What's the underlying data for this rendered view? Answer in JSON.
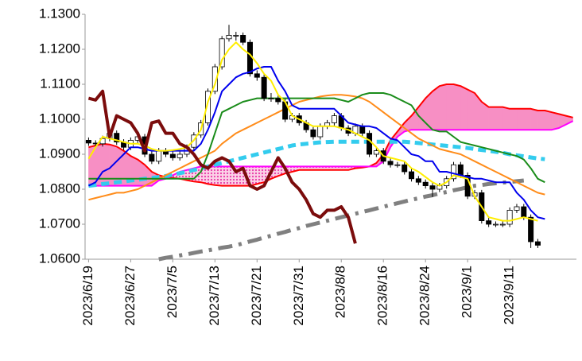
{
  "chart_data": {
    "type": "candlestick",
    "categories": [
      "2023/6/19",
      null,
      null,
      null,
      null,
      null,
      "2023/6/27",
      null,
      null,
      null,
      null,
      null,
      "2023/7/5",
      null,
      null,
      null,
      null,
      null,
      "2023/7/13",
      null,
      null,
      null,
      null,
      null,
      "2023/7/21",
      null,
      null,
      null,
      null,
      null,
      "2023/7/31",
      null,
      null,
      null,
      null,
      null,
      "2023/8/8",
      null,
      null,
      null,
      null,
      null,
      "2023/8/16",
      null,
      null,
      null,
      null,
      null,
      "2023/8/24",
      null,
      null,
      null,
      null,
      null,
      "2023/9/1",
      null,
      null,
      null,
      null,
      null,
      "2023/9/11",
      null,
      null,
      null,
      null,
      null,
      null,
      null,
      null,
      null
    ],
    "open": [
      1.094,
      1.0932,
      1.093,
      1.0945,
      1.096,
      1.0935,
      1.092,
      1.094,
      1.095,
      1.09,
      1.088,
      1.091,
      1.09,
      1.089,
      1.09,
      1.092,
      1.0955,
      1.099,
      1.108,
      1.115,
      1.123,
      1.124,
      1.124,
      1.122,
      1.113,
      1.112,
      1.106,
      1.106,
      1.105,
      1.1,
      1.101,
      1.099,
      1.097,
      1.095,
      1.098,
      1.099,
      1.101,
      1.0975,
      1.096,
      1.098,
      1.096,
      1.09,
      1.091,
      1.088,
      1.087,
      1.087,
      1.085,
      1.083,
      1.082,
      1.081,
      1.08,
      1.081,
      1.083,
      1.087,
      1.084,
      1.078,
      1.079,
      1.071,
      1.07,
      1.07,
      1.07,
      1.074,
      1.075,
      1.072,
      1.065,
      null,
      null,
      null,
      null,
      null
    ],
    "high": [
      1.0948,
      1.094,
      1.0953,
      1.0968,
      1.0968,
      1.0943,
      1.0948,
      1.0958,
      1.0958,
      1.0908,
      1.0918,
      1.0918,
      1.0908,
      1.0908,
      1.0928,
      1.0963,
      1.0998,
      1.1088,
      1.1158,
      1.1238,
      1.127,
      1.125,
      1.1248,
      1.1228,
      1.114,
      1.1128,
      1.1075,
      1.1068,
      1.1058,
      1.1018,
      1.1018,
      1.0998,
      1.0978,
      1.0988,
      1.0998,
      1.1018,
      1.1018,
      1.0983,
      1.0988,
      1.0988,
      1.0968,
      1.0918,
      1.0918,
      1.0888,
      1.0878,
      1.0878,
      1.0858,
      1.0838,
      1.0828,
      1.0818,
      1.0818,
      1.0838,
      1.0878,
      1.0878,
      1.0848,
      1.0798,
      1.0798,
      1.0718,
      1.0708,
      1.0708,
      1.0748,
      1.0758,
      1.0758,
      1.0728,
      1.0658,
      null,
      null,
      null,
      null,
      null
    ],
    "low": [
      1.0924,
      1.0922,
      1.0922,
      1.0937,
      1.0927,
      1.0912,
      1.0912,
      1.0932,
      1.0892,
      1.0872,
      1.0872,
      1.0892,
      1.0882,
      1.0882,
      1.0892,
      1.0912,
      1.0947,
      1.0982,
      1.1072,
      1.1142,
      1.1222,
      1.1225,
      1.1212,
      1.1122,
      1.111,
      1.1052,
      1.105,
      1.1042,
      1.0992,
      1.0992,
      1.0982,
      1.0962,
      1.0942,
      1.0942,
      1.0972,
      1.0982,
      1.0967,
      1.0952,
      1.0952,
      1.0952,
      1.0892,
      1.0892,
      1.0872,
      1.0862,
      1.0862,
      1.0842,
      1.0822,
      1.0812,
      1.0802,
      1.0778,
      1.0792,
      1.0802,
      1.0822,
      1.0832,
      1.0772,
      1.0772,
      1.0702,
      1.0692,
      1.0692,
      1.0692,
      1.0692,
      1.0732,
      1.0712,
      1.0632,
      1.0632,
      null,
      null,
      null,
      null,
      null
    ],
    "close": [
      1.0932,
      1.093,
      1.0945,
      1.096,
      1.0935,
      1.092,
      1.094,
      1.095,
      1.09,
      1.088,
      1.091,
      1.09,
      1.089,
      1.09,
      1.092,
      1.0955,
      1.099,
      1.108,
      1.115,
      1.123,
      1.124,
      1.124,
      1.122,
      1.113,
      1.112,
      1.106,
      1.106,
      1.105,
      1.1,
      1.101,
      1.099,
      1.097,
      1.095,
      1.098,
      1.099,
      1.101,
      1.0975,
      1.096,
      1.098,
      1.096,
      1.09,
      1.091,
      1.088,
      1.087,
      1.087,
      1.085,
      1.083,
      1.082,
      1.081,
      1.08,
      1.081,
      1.083,
      1.087,
      1.084,
      1.078,
      1.079,
      1.071,
      1.07,
      1.07,
      1.07,
      1.074,
      1.075,
      1.072,
      1.065,
      1.064,
      null,
      null,
      null,
      null,
      null
    ],
    "up_color": "#ffffff",
    "down_color": "#000000",
    "cloud": {
      "fill": "#f78fc4",
      "span_a": {
        "color": "#ff0000",
        "values": [
          1.092,
          1.0925,
          1.093,
          1.0928,
          1.0922,
          1.091,
          1.0895,
          1.0885,
          1.087,
          1.085,
          1.084,
          1.0835,
          1.0832,
          1.083,
          1.0826,
          1.0822,
          1.082,
          1.0815,
          1.0812,
          1.081,
          1.081,
          1.081,
          1.081,
          1.081,
          1.0815,
          1.082,
          1.083,
          1.0838,
          1.0845,
          1.085,
          1.0855,
          1.0855,
          1.0855,
          1.0855,
          1.0855,
          1.0855,
          1.0855,
          1.0855,
          1.086,
          1.0862,
          1.0865,
          1.0875,
          1.09,
          1.094,
          1.0965,
          1.099,
          1.101,
          1.1035,
          1.106,
          1.108,
          1.1095,
          1.11,
          1.11,
          1.1095,
          1.1085,
          1.1075,
          1.105,
          1.1035,
          1.1035,
          1.1035,
          1.103,
          1.103,
          1.103,
          1.103,
          1.1025,
          1.1025,
          1.102,
          1.1015,
          1.101,
          1.1005
        ]
      },
      "span_b": {
        "color": "#ff00ff",
        "values": [
          1.081,
          1.081,
          1.081,
          1.081,
          1.081,
          1.081,
          1.081,
          1.081,
          1.081,
          1.081,
          1.0825,
          1.083,
          1.084,
          1.085,
          1.0855,
          1.086,
          1.0865,
          1.0865,
          1.0865,
          1.0865,
          1.0865,
          1.0865,
          1.0865,
          1.0865,
          1.0865,
          1.0865,
          1.0865,
          1.0865,
          1.0865,
          1.0865,
          1.0865,
          1.0865,
          1.0865,
          1.0865,
          1.0865,
          1.0865,
          1.0865,
          1.0865,
          1.0865,
          1.0865,
          1.0865,
          1.0865,
          1.088,
          1.092,
          1.095,
          1.0965,
          1.097,
          1.097,
          1.097,
          1.097,
          1.097,
          1.097,
          1.097,
          1.097,
          1.097,
          1.097,
          1.097,
          1.097,
          1.097,
          1.097,
          1.097,
          1.097,
          1.097,
          1.097,
          1.097,
          1.097,
          1.097,
          1.0975,
          1.0985,
          1.0995
        ]
      }
    },
    "lines": [
      {
        "color": "#808080",
        "dash": "dashdot",
        "width": 5,
        "values": [
          null,
          null,
          null,
          null,
          null,
          null,
          null,
          null,
          null,
          null,
          1.06,
          1.0604,
          1.0607,
          1.0611,
          1.0614,
          1.0618,
          1.0622,
          1.0625,
          1.0629,
          1.0633,
          1.0636,
          1.064,
          1.0645,
          1.0651,
          1.0656,
          1.0662,
          1.0667,
          1.0673,
          1.0678,
          1.0684,
          1.0689,
          1.0695,
          1.07,
          1.0705,
          1.071,
          1.0715,
          1.072,
          1.0725,
          1.073,
          1.0735,
          1.074,
          1.0745,
          1.075,
          1.0755,
          1.076,
          1.0765,
          1.077,
          1.0774,
          1.0779,
          1.0783,
          1.0788,
          1.0792,
          1.0797,
          1.0801,
          1.0806,
          1.081,
          1.0812,
          1.0815,
          1.0817,
          1.0819,
          1.0821,
          1.0823,
          1.0825,
          null,
          null,
          null,
          null,
          null,
          null,
          null
        ]
      },
      {
        "color": "#33ccee",
        "dash": "dashed",
        "width": 5,
        "values": [
          1.081,
          1.0812,
          1.0815,
          1.0817,
          1.082,
          1.0822,
          1.0825,
          1.0827,
          1.083,
          1.0832,
          1.0835,
          1.0838,
          1.0842,
          1.0846,
          1.085,
          1.0855,
          1.086,
          1.0865,
          1.087,
          1.0875,
          1.088,
          1.0885,
          1.089,
          1.0895,
          1.09,
          1.0905,
          1.091,
          1.0915,
          1.092,
          1.0925,
          1.0928,
          1.093,
          1.0932,
          1.0934,
          1.0935,
          1.0936,
          1.0936,
          1.0936,
          1.0936,
          1.0936,
          1.0936,
          1.0936,
          1.0936,
          1.0936,
          1.0936,
          1.0936,
          1.0934,
          1.0932,
          1.093,
          1.0928,
          1.0926,
          1.0924,
          1.0922,
          1.092,
          1.0918,
          1.0915,
          1.0912,
          1.091,
          1.0907,
          1.0904,
          1.09,
          1.0897,
          1.0894,
          1.0891,
          1.0888,
          1.0886,
          null,
          null,
          null,
          null
        ]
      },
      {
        "color": "#ff8c1a",
        "dash": "solid",
        "width": 2,
        "values": [
          1.077,
          1.0775,
          1.078,
          1.0785,
          1.079,
          1.079,
          1.0795,
          1.08,
          1.081,
          1.082,
          1.083,
          1.084,
          1.085,
          1.086,
          1.087,
          1.088,
          1.089,
          1.09,
          1.091,
          1.093,
          1.0945,
          1.096,
          1.097,
          1.098,
          1.099,
          1.1,
          1.101,
          1.102,
          1.103,
          1.104,
          1.105,
          1.1055,
          1.106,
          1.1065,
          1.1068,
          1.107,
          1.107,
          1.1068,
          1.1065,
          1.106,
          1.105,
          1.1035,
          1.102,
          1.1005,
          1.099,
          1.0975,
          1.096,
          1.0945,
          1.0935,
          1.0925,
          1.0915,
          1.091,
          1.0905,
          1.09,
          1.089,
          1.088,
          1.087,
          1.086,
          1.085,
          1.084,
          1.083,
          1.082,
          1.081,
          1.08,
          1.079,
          1.0785,
          null,
          null,
          null,
          null
        ]
      },
      {
        "color": "#1a8c1a",
        "dash": "solid",
        "width": 2,
        "values": [
          1.083,
          1.083,
          1.083,
          1.083,
          1.083,
          1.083,
          1.083,
          1.083,
          1.083,
          1.083,
          1.083,
          1.083,
          1.083,
          1.083,
          1.083,
          1.083,
          1.085,
          1.09,
          1.096,
          1.102,
          1.103,
          1.104,
          1.105,
          1.1055,
          1.106,
          1.106,
          1.106,
          1.106,
          1.106,
          1.106,
          1.106,
          1.106,
          1.106,
          1.106,
          1.106,
          1.106,
          1.1055,
          1.105,
          1.106,
          1.107,
          1.1075,
          1.1075,
          1.1075,
          1.107,
          1.106,
          1.105,
          1.104,
          1.101,
          1.099,
          1.097,
          1.0965,
          1.0965,
          1.095,
          1.0935,
          1.093,
          1.0925,
          1.092,
          1.0915,
          1.091,
          1.0905,
          1.09,
          1.0895,
          1.0885,
          1.086,
          1.083,
          1.082,
          null,
          null,
          null,
          null
        ]
      },
      {
        "color": "#0000ee",
        "dash": "solid",
        "width": 2,
        "values": [
          1.081,
          1.082,
          1.085,
          1.086,
          1.088,
          1.09,
          1.092,
          1.092,
          1.0915,
          1.091,
          1.091,
          1.091,
          1.091,
          1.091,
          1.091,
          1.091,
          1.093,
          1.097,
          1.102,
          1.108,
          1.11,
          1.112,
          1.113,
          1.1135,
          1.1145,
          1.115,
          1.115,
          1.111,
          1.108,
          1.104,
          1.103,
          1.103,
          1.103,
          1.103,
          1.103,
          1.103,
          1.101,
          1.099,
          1.0985,
          1.098,
          1.098,
          1.0975,
          1.096,
          1.0945,
          1.094,
          1.092,
          1.09,
          1.0895,
          1.088,
          1.088,
          1.085,
          1.085,
          1.0845,
          1.084,
          1.0835,
          1.083,
          1.083,
          1.0825,
          1.082,
          1.082,
          1.082,
          1.079,
          1.077,
          1.074,
          1.072,
          1.0715,
          null,
          null,
          null,
          null
        ]
      },
      {
        "color": "#ffee00",
        "dash": "solid",
        "width": 2,
        "values": [
          1.0887,
          1.092,
          1.095,
          1.0945,
          1.094,
          1.0935,
          1.093,
          1.093,
          1.0925,
          1.0915,
          1.091,
          1.091,
          1.0912,
          1.0915,
          1.092,
          1.094,
          1.097,
          1.105,
          1.11,
          1.117,
          1.12,
          1.122,
          1.12,
          1.1185,
          1.116,
          1.113,
          1.111,
          1.107,
          1.105,
          1.101,
          1.1,
          1.099,
          1.098,
          1.098,
          1.098,
          1.098,
          1.0975,
          1.097,
          1.096,
          1.095,
          1.094,
          1.092,
          1.0895,
          1.089,
          1.0885,
          1.088,
          1.086,
          1.085,
          1.0835,
          1.082,
          1.081,
          1.082,
          1.084,
          1.0835,
          1.083,
          1.078,
          1.075,
          1.072,
          1.0715,
          1.071,
          1.071,
          1.0715,
          1.072,
          1.0715,
          1.071,
          null,
          null,
          null,
          null,
          null
        ]
      },
      {
        "color": "#7b0c0c",
        "dash": "solid",
        "width": 4,
        "values": [
          1.106,
          1.1055,
          1.108,
          1.095,
          1.101,
          1.1,
          1.099,
          1.096,
          1.091,
          1.099,
          1.0995,
          1.096,
          1.096,
          1.093,
          1.092,
          1.09,
          1.087,
          1.086,
          1.088,
          1.089,
          1.088,
          1.085,
          1.086,
          1.081,
          1.08,
          1.081,
          1.085,
          1.089,
          1.086,
          1.082,
          1.08,
          1.077,
          1.073,
          1.072,
          1.074,
          1.074,
          1.075,
          1.072,
          1.0645,
          null,
          null,
          null,
          null,
          null,
          null,
          null,
          null,
          null,
          null,
          null,
          null,
          null,
          null,
          null,
          null,
          null,
          null,
          null,
          null,
          null,
          null,
          null,
          null,
          null,
          null,
          null,
          null,
          null,
          null,
          null
        ]
      }
    ],
    "ylim": [
      1.06,
      1.13
    ],
    "yticks": [
      {
        "value": 1.06,
        "label": "1.0600"
      },
      {
        "value": 1.07,
        "label": "1.0700"
      },
      {
        "value": 1.08,
        "label": "1.0800"
      },
      {
        "value": 1.09,
        "label": "1.0900"
      },
      {
        "value": 1.1,
        "label": "1.1000"
      },
      {
        "value": 1.11,
        "label": "1.1100"
      },
      {
        "value": 1.12,
        "label": "1.1200"
      },
      {
        "value": 1.13,
        "label": "1.1300"
      }
    ],
    "grid": false
  }
}
